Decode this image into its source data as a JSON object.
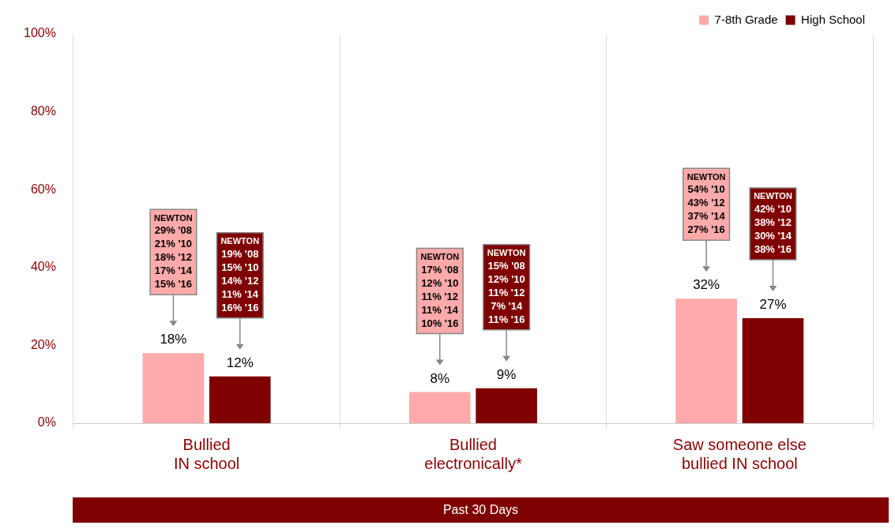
{
  "chart_data": {
    "type": "bar",
    "categories": [
      "Bullied\nIN school",
      "Bullied\nelectronically*",
      "Saw someone else\nbullied IN school"
    ],
    "series": [
      {
        "name": "7-8th Grade",
        "color": "#ffaaaa",
        "values": [
          18,
          8,
          32
        ],
        "value_labels": [
          "18%",
          "8%",
          "32%"
        ]
      },
      {
        "name": "High School",
        "color": "#7f0000",
        "values": [
          12,
          9,
          27
        ],
        "value_labels": [
          "12%",
          "9%",
          "27%"
        ]
      }
    ],
    "ylim": [
      0,
      100
    ],
    "yticks": [
      {
        "value": 0,
        "label": "0%"
      },
      {
        "value": 20,
        "label": "20%"
      },
      {
        "value": 40,
        "label": "40%"
      },
      {
        "value": 60,
        "label": "60%"
      },
      {
        "value": 80,
        "label": "80%"
      },
      {
        "value": 100,
        "label": "100%"
      }
    ],
    "grid": "x",
    "legend": "top right",
    "annotations": [
      "NEWTON\n29% '08\n21% '10\n18% '12\n17% '14\n15% '16",
      "NEWTON\n19% '08\n15% '10\n14% '12\n11% '14\n16% '16",
      "NEWTON\n17% '08\n12% '10\n11% '12\n11% '14\n10% '16",
      "NEWTON\n15% '08\n12% '10\n11% '12\n7% '14\n11% '16",
      "NEWTON\n54% '10\n43% '12\n37% '14\n27% '16",
      "NEWTON\n42% '10\n38% '12\n30% '14\n38% '16",
      "Past 30 Days"
    ]
  }
}
